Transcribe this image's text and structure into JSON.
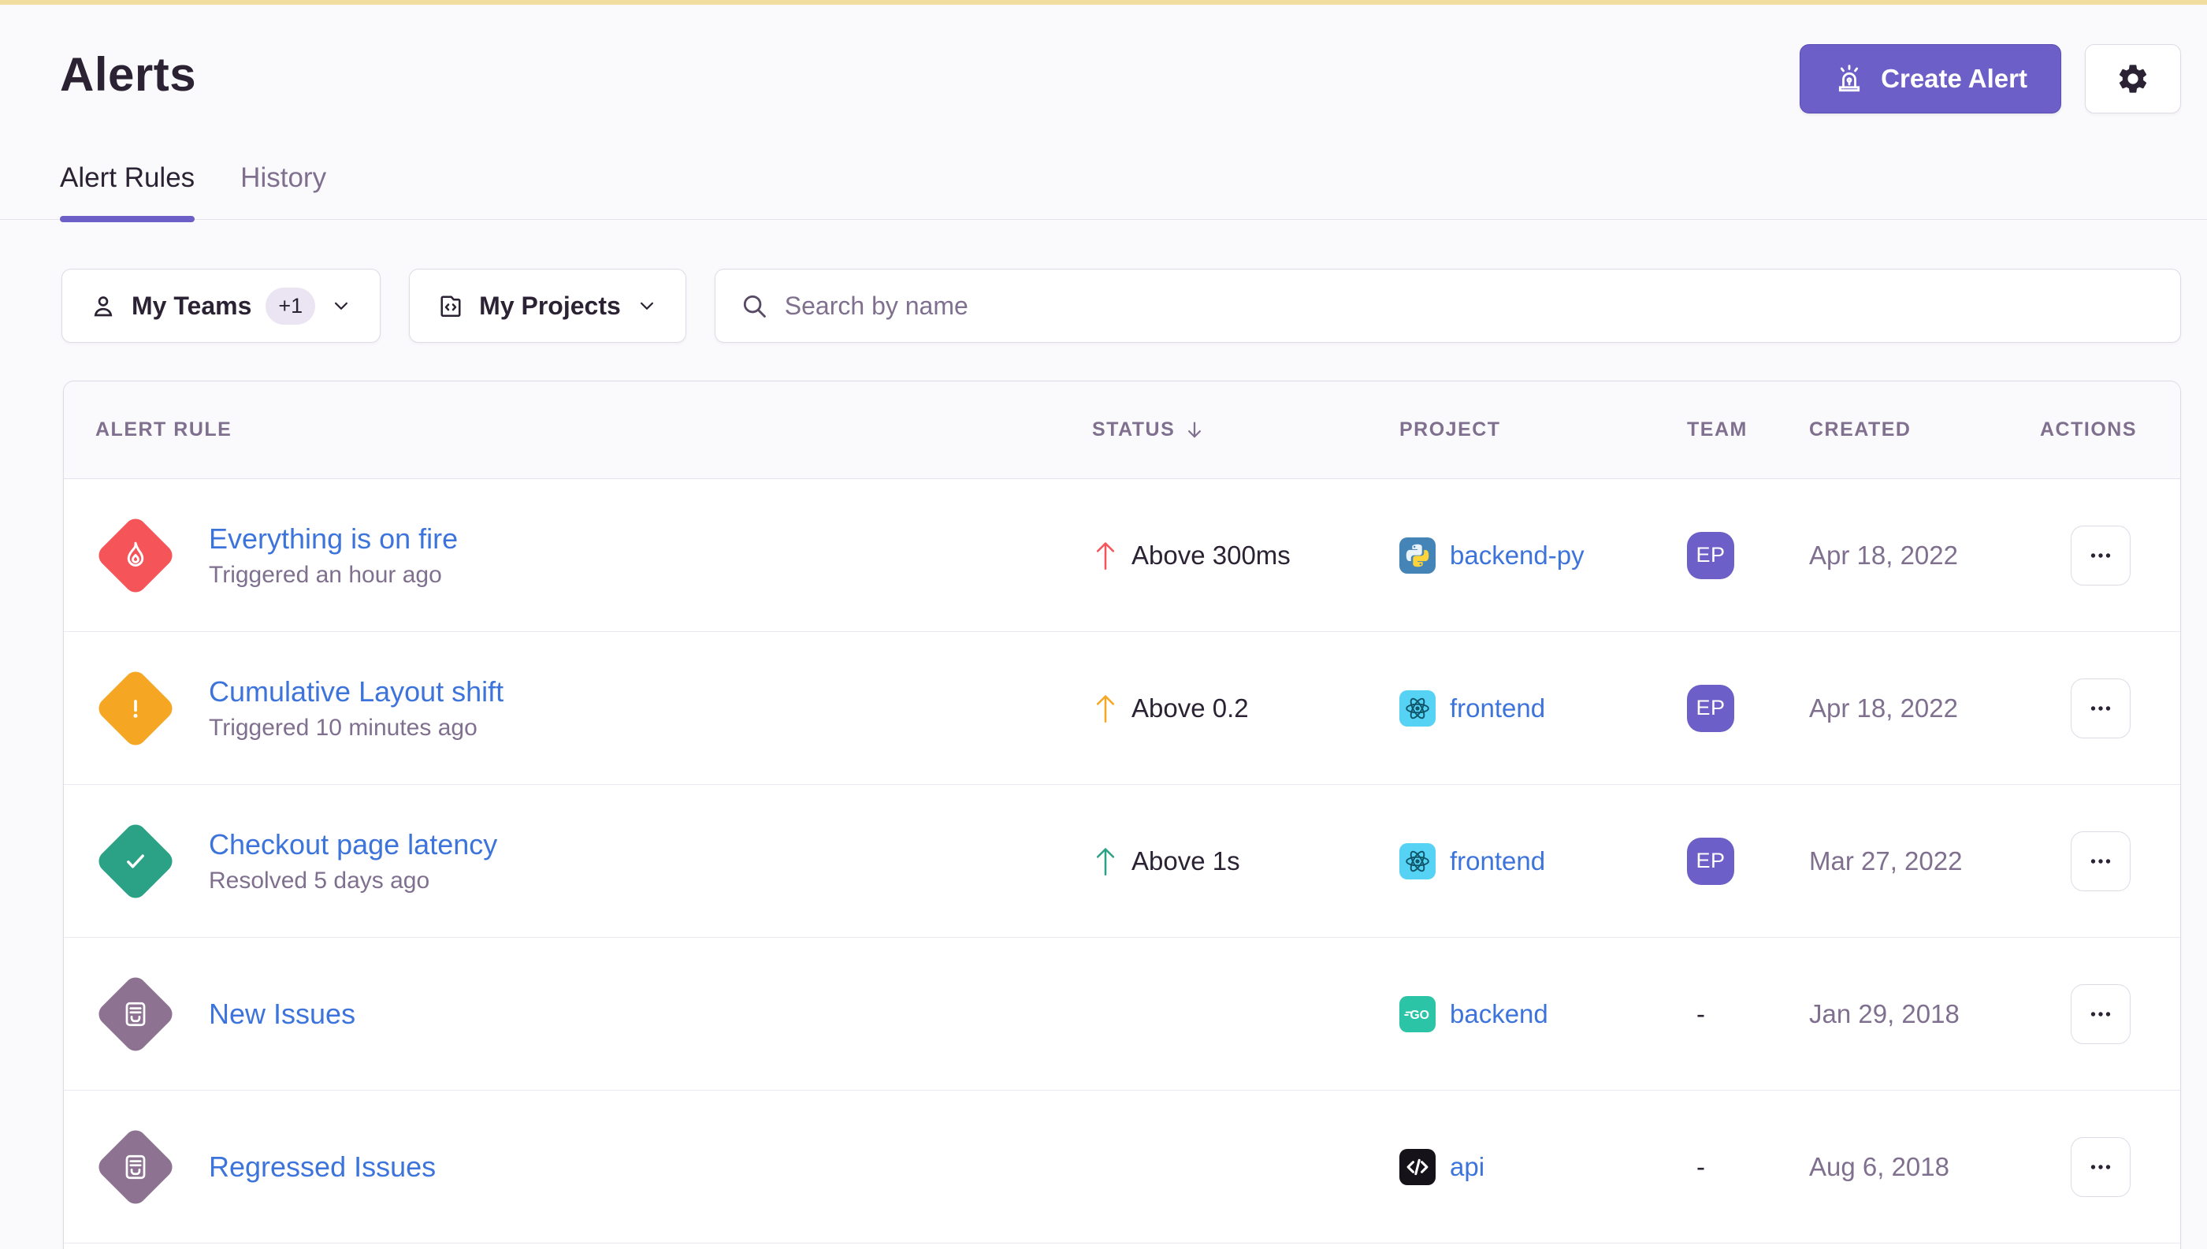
{
  "page": {
    "title": "Alerts"
  },
  "header": {
    "create_alert_label": "Create Alert"
  },
  "tabs": [
    {
      "label": "Alert Rules",
      "active": true
    },
    {
      "label": "History",
      "active": false
    }
  ],
  "filters": {
    "teams": {
      "label": "My Teams",
      "badge": "+1"
    },
    "projects": {
      "label": "My Projects"
    },
    "search": {
      "placeholder": "Search by name"
    }
  },
  "table": {
    "columns": [
      "Alert Rule",
      "Status",
      "Project",
      "Team",
      "Created",
      "Actions"
    ],
    "sort": {
      "column": "Status",
      "direction": "desc"
    },
    "empty_team_placeholder": "-",
    "rows": [
      {
        "name": "Everything is on fire",
        "subtitle": "Triggered an hour ago",
        "state": "critical",
        "state_color": "#F55459",
        "status": "Above 300ms",
        "status_color": "#F55459",
        "project": "backend-py",
        "platform": "python",
        "team": "EP",
        "created": "Apr 18, 2022"
      },
      {
        "name": "Cumulative Layout shift",
        "subtitle": "Triggered 10 minutes ago",
        "state": "warning",
        "state_color": "#F5A623",
        "status": "Above 0.2",
        "status_color": "#F5A623",
        "project": "frontend",
        "platform": "react",
        "team": "EP",
        "created": "Apr 18, 2022"
      },
      {
        "name": "Checkout page latency",
        "subtitle": "Resolved 5 days ago",
        "state": "resolved",
        "state_color": "#2BA185",
        "status": "Above 1s",
        "status_color": "#2BA185",
        "project": "frontend",
        "platform": "react",
        "team": "EP",
        "created": "Mar 27, 2022"
      },
      {
        "name": "New Issues",
        "subtitle": null,
        "state": "issue",
        "state_color": "#8D7292",
        "status": null,
        "status_color": null,
        "project": "backend",
        "platform": "go",
        "team": null,
        "created": "Jan 29, 2018"
      },
      {
        "name": "Regressed Issues",
        "subtitle": null,
        "state": "issue",
        "state_color": "#8D7292",
        "status": null,
        "status_color": null,
        "project": "api",
        "platform": "code",
        "team": null,
        "created": "Aug 6, 2018"
      }
    ]
  },
  "colors": {
    "accent": "#6C5FC7",
    "link": "#3D74DB",
    "critical": "#F55459",
    "warning": "#F5A623",
    "resolved": "#2BA185",
    "issue_diamond": "#8D7292",
    "top_banner": "#F1DD9F"
  }
}
